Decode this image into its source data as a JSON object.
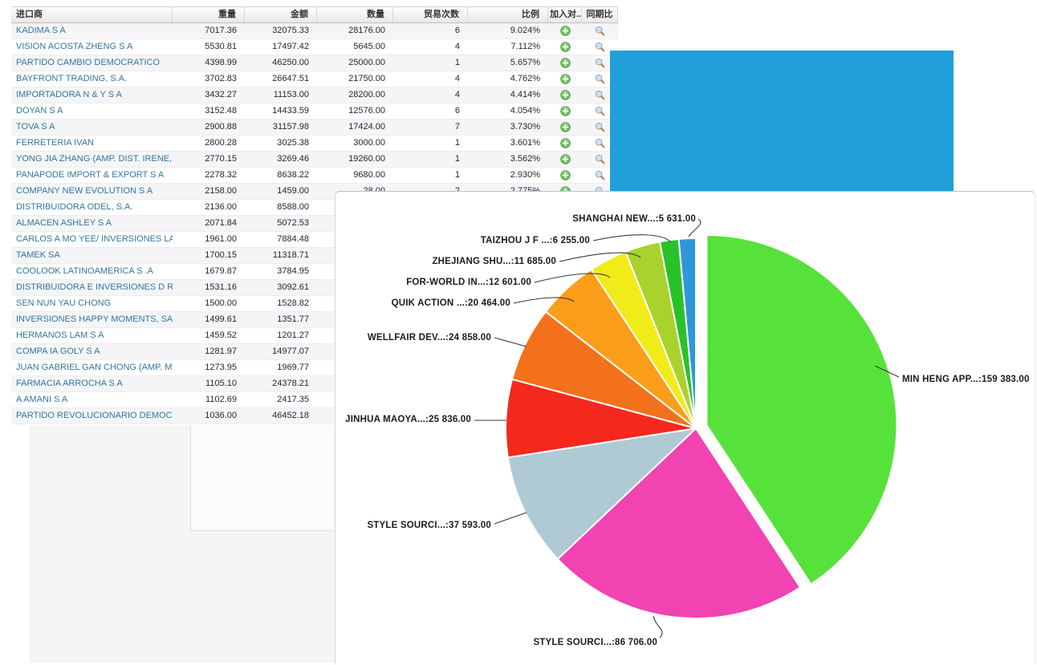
{
  "colors": {
    "blue_window": "#219FDB",
    "panel_border_top": "#a9c6de",
    "grid_link_text": "#35749e",
    "add_icon_green": "#5cb85c",
    "magnifier_lens": "#cfe0f0",
    "magnifier_handle": "#b5753a"
  },
  "table": {
    "columns": [
      {
        "key": "importer",
        "label": "进口商",
        "align": "left"
      },
      {
        "key": "weight",
        "label": "重量",
        "align": "right"
      },
      {
        "key": "amount",
        "label": "金额",
        "align": "right"
      },
      {
        "key": "qty",
        "label": "数量",
        "align": "right"
      },
      {
        "key": "trades",
        "label": "贸易次数",
        "align": "right"
      },
      {
        "key": "ratio",
        "label": "比例",
        "align": "right"
      },
      {
        "key": "add",
        "label": "加入对...",
        "align": "center"
      },
      {
        "key": "yoy",
        "label": "同期比",
        "align": "center"
      }
    ],
    "rows": [
      {
        "importer": "KADIMA S A",
        "weight": "7017.36",
        "amount": "32075.33",
        "qty": "28176.00",
        "trades": "6",
        "ratio": "9.024%"
      },
      {
        "importer": "VISION ACOSTA ZHENG S A",
        "weight": "5530.81",
        "amount": "17497.42",
        "qty": "5645.00",
        "trades": "4",
        "ratio": "7.112%"
      },
      {
        "importer": "PARTIDO CAMBIO DEMOCRATICO",
        "weight": "4398.99",
        "amount": "46250.00",
        "qty": "25000.00",
        "trades": "1",
        "ratio": "5.657%"
      },
      {
        "importer": "BAYFRONT TRADING, S.A.",
        "weight": "3702.83",
        "amount": "26647.51",
        "qty": "21750.00",
        "trades": "4",
        "ratio": "4.762%"
      },
      {
        "importer": "IMPORTADORA N & Y S A",
        "weight": "3432.27",
        "amount": "11153.00",
        "qty": "28200.00",
        "trades": "4",
        "ratio": "4.414%"
      },
      {
        "importer": "DOYAN S A",
        "weight": "3152.48",
        "amount": "14433.59",
        "qty": "12576.00",
        "trades": "6",
        "ratio": "4.054%"
      },
      {
        "importer": "TOVA S A",
        "weight": "2900.88",
        "amount": "31157.98",
        "qty": "17424.00",
        "trades": "7",
        "ratio": "3.730%"
      },
      {
        "importer": "FERRETERIA IVAN",
        "weight": "2800.28",
        "amount": "3025.38",
        "qty": "3000.00",
        "trades": "1",
        "ratio": "3.601%"
      },
      {
        "importer": "YONG JIA ZHANG (AMP. DIST. IRENE, S...",
        "weight": "2770.15",
        "amount": "3269.46",
        "qty": "19260.00",
        "trades": "1",
        "ratio": "3.562%"
      },
      {
        "importer": "PANAPODE IMPORT & EXPORT S A",
        "weight": "2278.32",
        "amount": "8638.22",
        "qty": "9680.00",
        "trades": "1",
        "ratio": "2.930%"
      },
      {
        "importer": "COMPANY NEW EVOLUTION S A",
        "weight": "2158.00",
        "amount": "1459.00",
        "qty": "28.00",
        "trades": "2",
        "ratio": "2.775%"
      },
      {
        "importer": "DISTRIBUIDORA ODEL, S.A.",
        "weight": "2136.00",
        "amount": "8588.00",
        "qty": "",
        "trades": "",
        "ratio": ""
      },
      {
        "importer": "ALMACEN ASHLEY S A",
        "weight": "2071.84",
        "amount": "5072.53",
        "qty": "",
        "trades": "",
        "ratio": ""
      },
      {
        "importer": "CARLOS A MO YEE/ INVERSIONES LA SI...",
        "weight": "1961.00",
        "amount": "7884.48",
        "qty": "",
        "trades": "",
        "ratio": ""
      },
      {
        "importer": "TAMEK SA",
        "weight": "1700.15",
        "amount": "11318.71",
        "qty": "",
        "trades": "",
        "ratio": ""
      },
      {
        "importer": "COOLOOK LATINOAMERICA S .A",
        "weight": "1679.87",
        "amount": "3784.95",
        "qty": "",
        "trades": "",
        "ratio": ""
      },
      {
        "importer": "DISTRIBUIDORA E INVERSIONES D R K ...",
        "weight": "1531.16",
        "amount": "3092.61",
        "qty": "",
        "trades": "",
        "ratio": ""
      },
      {
        "importer": "SEN NUN YAU CHONG",
        "weight": "1500.00",
        "amount": "1528.82",
        "qty": "",
        "trades": "",
        "ratio": ""
      },
      {
        "importer": "INVERSIONES HAPPY MOMENTS, SA",
        "weight": "1499.61",
        "amount": "1351.77",
        "qty": "",
        "trades": "",
        "ratio": ""
      },
      {
        "importer": "HERMANOS LAM S A",
        "weight": "1459.52",
        "amount": "1201.27",
        "qty": "",
        "trades": "",
        "ratio": ""
      },
      {
        "importer": "COMPA IA GOLY S A",
        "weight": "1281.97",
        "amount": "14977.07",
        "qty": "",
        "trades": "",
        "ratio": ""
      },
      {
        "importer": "JUAN GABRIEL GAN CHONG (AMP. MAYO...",
        "weight": "1273.95",
        "amount": "1969.77",
        "qty": "",
        "trades": "",
        "ratio": ""
      },
      {
        "importer": "FARMACIA ARROCHA S A",
        "weight": "1105.10",
        "amount": "24378.21",
        "qty": "",
        "trades": "",
        "ratio": ""
      },
      {
        "importer": "A AMANI S A",
        "weight": "1102.69",
        "amount": "2417.35",
        "qty": "",
        "trades": "",
        "ratio": ""
      },
      {
        "importer": "PARTIDO REVOLUCIONARIO DEMOCRAT...",
        "weight": "1036.00",
        "amount": "46452.18",
        "qty": "",
        "trades": "",
        "ratio": ""
      }
    ]
  },
  "chart_data": {
    "type": "pie",
    "title": "",
    "legend": "none",
    "label_style": "callout",
    "start_angle_deg_from_12_clockwise": 0,
    "slices": [
      {
        "name": "MIN HENG APP...",
        "value": 159383.0,
        "display": "MIN HENG APP...:159 383.00",
        "color": "#57E13B",
        "exploded": true
      },
      {
        "name": "STYLE SOURCI...",
        "value": 86706.0,
        "display": "STYLE SOURCI...:86 706.00",
        "color": "#F243B2",
        "exploded": false
      },
      {
        "name": "STYLE SOURCI...",
        "value": 37593.0,
        "display": "STYLE SOURCI...:37 593.00",
        "color": "#AFCAD5",
        "exploded": false
      },
      {
        "name": "JINHUA MAOYA...",
        "value": 25836.0,
        "display": "JINHUA MAOYA...:25 836.00",
        "color": "#F5281E",
        "exploded": false
      },
      {
        "name": "WELLFAIR DEV...",
        "value": 24858.0,
        "display": "WELLFAIR DEV...:24 858.00",
        "color": "#F4711C",
        "exploded": false
      },
      {
        "name": "QUIK ACTION ...",
        "value": 20464.0,
        "display": "QUIK ACTION ...:20 464.00",
        "color": "#FA9E1A",
        "exploded": false
      },
      {
        "name": "FOR-WORLD IN...",
        "value": 12601.0,
        "display": "FOR-WORLD IN...:12 601.00",
        "color": "#F2EB1A",
        "exploded": false
      },
      {
        "name": "ZHEJIANG SHU...",
        "value": 11685.0,
        "display": "ZHEJIANG SHU...:11 685.00",
        "color": "#A9D22F",
        "exploded": false
      },
      {
        "name": "TAIZHOU J F ...",
        "value": 6255.0,
        "display": "TAIZHOU J F ...:6 255.00",
        "color": "#28C228",
        "exploded": false
      },
      {
        "name": "SHANGHAI NEW...",
        "value": 5631.0,
        "display": "SHANGHAI NEW...:5 631.00",
        "color": "#2F97D8",
        "exploded": false
      }
    ]
  }
}
